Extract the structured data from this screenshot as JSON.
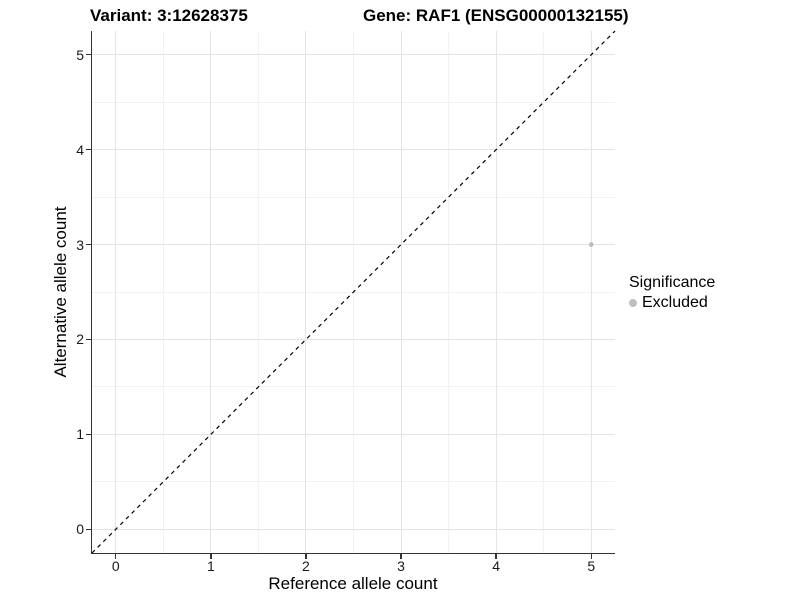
{
  "titles": {
    "variant": "Variant: 3:12628375",
    "gene": "Gene: RAF1 (ENSG00000132155)"
  },
  "axes": {
    "x": {
      "label": "Reference allele count",
      "tick_labels": [
        "0",
        "1",
        "2",
        "3",
        "4",
        "5"
      ]
    },
    "y": {
      "label": "Alternative allele count",
      "tick_labels": [
        "0",
        "1",
        "2",
        "3",
        "4",
        "5"
      ]
    }
  },
  "legend": {
    "title": "Significance",
    "items": [
      {
        "label": "Excluded",
        "color": "#bebebe"
      }
    ]
  },
  "chart_data": {
    "type": "scatter",
    "title_left": "Variant: 3:12628375",
    "title_right": "Gene: RAF1 (ENSG00000132155)",
    "xlabel": "Reference allele count",
    "ylabel": "Alternative allele count",
    "xlim": [
      -0.25,
      5.25
    ],
    "ylim": [
      -0.25,
      5.25
    ],
    "x_major_ticks": [
      0,
      1,
      2,
      3,
      4,
      5
    ],
    "y_major_ticks": [
      0,
      1,
      2,
      3,
      4,
      5
    ],
    "x_minor_ticks": [
      0.5,
      1.5,
      2.5,
      3.5,
      4.5
    ],
    "y_minor_ticks": [
      0.5,
      1.5,
      2.5,
      3.5,
      4.5
    ],
    "grid": true,
    "legend_position": "right",
    "series": [
      {
        "name": "Excluded",
        "color": "#bebebe",
        "point_radius": 2.4,
        "points": [
          {
            "x": 5,
            "y": 3
          }
        ]
      }
    ],
    "reference_line": {
      "type": "identity",
      "from": [
        -0.25,
        -0.25
      ],
      "to": [
        5.25,
        5.25
      ],
      "style": "dashed",
      "color": "#000000",
      "dash": "4 4",
      "width": 1.2
    },
    "colors": {
      "grid_major": "#e4e4e4",
      "grid_minor": "#f2f2f2",
      "axis_line": "#333333",
      "point": "#bebebe",
      "tick_label": "#1a1a1a"
    }
  }
}
